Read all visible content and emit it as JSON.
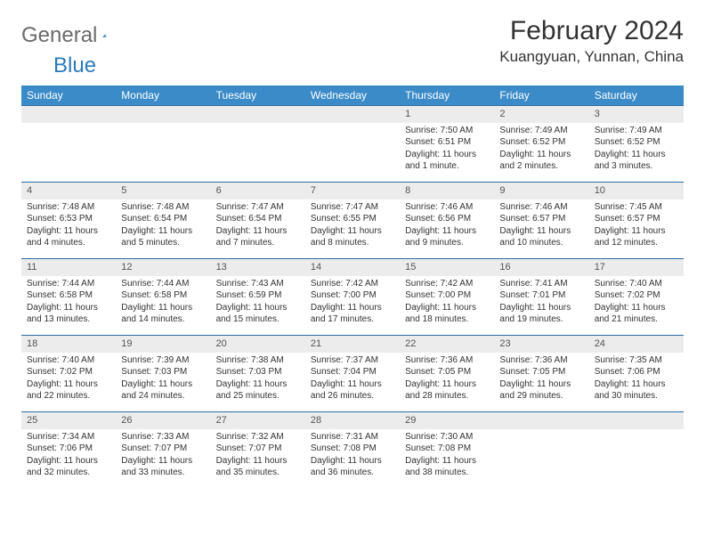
{
  "logo": {
    "word1": "General",
    "word2": "Blue"
  },
  "title": "February 2024",
  "location": "Kuangyuan, Yunnan, China",
  "colors": {
    "header_bg": "#3b8bc8",
    "header_text": "#ffffff",
    "daynum_bg": "#ececec",
    "border": "#2a6da3",
    "logo_gray": "#6a6a6a",
    "logo_blue": "#2a7ab9"
  },
  "day_headers": [
    "Sunday",
    "Monday",
    "Tuesday",
    "Wednesday",
    "Thursday",
    "Friday",
    "Saturday"
  ],
  "weeks": [
    [
      null,
      null,
      null,
      null,
      {
        "n": "1",
        "sr": "7:50 AM",
        "ss": "6:51 PM",
        "dl": "11 hours and 1 minute."
      },
      {
        "n": "2",
        "sr": "7:49 AM",
        "ss": "6:52 PM",
        "dl": "11 hours and 2 minutes."
      },
      {
        "n": "3",
        "sr": "7:49 AM",
        "ss": "6:52 PM",
        "dl": "11 hours and 3 minutes."
      }
    ],
    [
      {
        "n": "4",
        "sr": "7:48 AM",
        "ss": "6:53 PM",
        "dl": "11 hours and 4 minutes."
      },
      {
        "n": "5",
        "sr": "7:48 AM",
        "ss": "6:54 PM",
        "dl": "11 hours and 5 minutes."
      },
      {
        "n": "6",
        "sr": "7:47 AM",
        "ss": "6:54 PM",
        "dl": "11 hours and 7 minutes."
      },
      {
        "n": "7",
        "sr": "7:47 AM",
        "ss": "6:55 PM",
        "dl": "11 hours and 8 minutes."
      },
      {
        "n": "8",
        "sr": "7:46 AM",
        "ss": "6:56 PM",
        "dl": "11 hours and 9 minutes."
      },
      {
        "n": "9",
        "sr": "7:46 AM",
        "ss": "6:57 PM",
        "dl": "11 hours and 10 minutes."
      },
      {
        "n": "10",
        "sr": "7:45 AM",
        "ss": "6:57 PM",
        "dl": "11 hours and 12 minutes."
      }
    ],
    [
      {
        "n": "11",
        "sr": "7:44 AM",
        "ss": "6:58 PM",
        "dl": "11 hours and 13 minutes."
      },
      {
        "n": "12",
        "sr": "7:44 AM",
        "ss": "6:58 PM",
        "dl": "11 hours and 14 minutes."
      },
      {
        "n": "13",
        "sr": "7:43 AM",
        "ss": "6:59 PM",
        "dl": "11 hours and 15 minutes."
      },
      {
        "n": "14",
        "sr": "7:42 AM",
        "ss": "7:00 PM",
        "dl": "11 hours and 17 minutes."
      },
      {
        "n": "15",
        "sr": "7:42 AM",
        "ss": "7:00 PM",
        "dl": "11 hours and 18 minutes."
      },
      {
        "n": "16",
        "sr": "7:41 AM",
        "ss": "7:01 PM",
        "dl": "11 hours and 19 minutes."
      },
      {
        "n": "17",
        "sr": "7:40 AM",
        "ss": "7:02 PM",
        "dl": "11 hours and 21 minutes."
      }
    ],
    [
      {
        "n": "18",
        "sr": "7:40 AM",
        "ss": "7:02 PM",
        "dl": "11 hours and 22 minutes."
      },
      {
        "n": "19",
        "sr": "7:39 AM",
        "ss": "7:03 PM",
        "dl": "11 hours and 24 minutes."
      },
      {
        "n": "20",
        "sr": "7:38 AM",
        "ss": "7:03 PM",
        "dl": "11 hours and 25 minutes."
      },
      {
        "n": "21",
        "sr": "7:37 AM",
        "ss": "7:04 PM",
        "dl": "11 hours and 26 minutes."
      },
      {
        "n": "22",
        "sr": "7:36 AM",
        "ss": "7:05 PM",
        "dl": "11 hours and 28 minutes."
      },
      {
        "n": "23",
        "sr": "7:36 AM",
        "ss": "7:05 PM",
        "dl": "11 hours and 29 minutes."
      },
      {
        "n": "24",
        "sr": "7:35 AM",
        "ss": "7:06 PM",
        "dl": "11 hours and 30 minutes."
      }
    ],
    [
      {
        "n": "25",
        "sr": "7:34 AM",
        "ss": "7:06 PM",
        "dl": "11 hours and 32 minutes."
      },
      {
        "n": "26",
        "sr": "7:33 AM",
        "ss": "7:07 PM",
        "dl": "11 hours and 33 minutes."
      },
      {
        "n": "27",
        "sr": "7:32 AM",
        "ss": "7:07 PM",
        "dl": "11 hours and 35 minutes."
      },
      {
        "n": "28",
        "sr": "7:31 AM",
        "ss": "7:08 PM",
        "dl": "11 hours and 36 minutes."
      },
      {
        "n": "29",
        "sr": "7:30 AM",
        "ss": "7:08 PM",
        "dl": "11 hours and 38 minutes."
      },
      null,
      null
    ]
  ],
  "labels": {
    "sunrise": "Sunrise:",
    "sunset": "Sunset:",
    "daylight": "Daylight:"
  }
}
